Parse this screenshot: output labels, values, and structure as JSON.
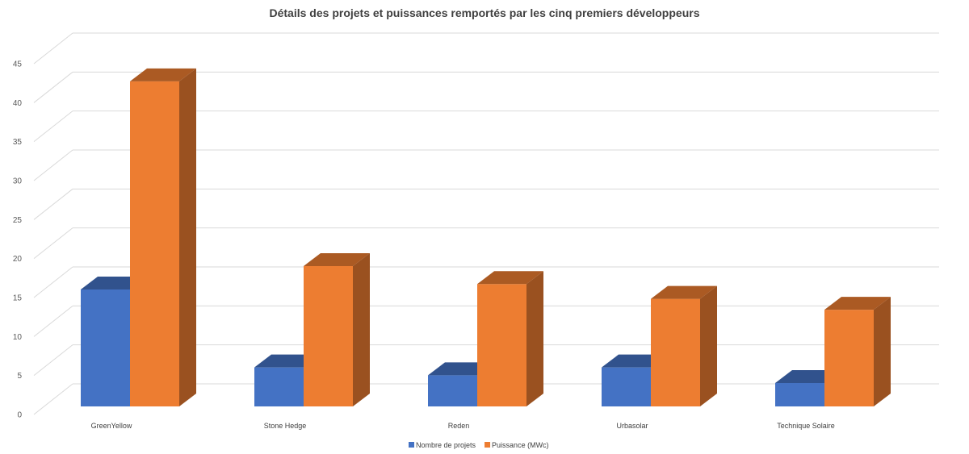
{
  "chart_data": {
    "type": "bar",
    "title": "Détails des projets et puissances remportés par les cinq premiers développeurs",
    "xlabel": "",
    "ylabel": "",
    "categories": [
      "GreenYellow",
      "Stone Hedge",
      "Reden",
      "Urbasolar",
      "Technique Solaire"
    ],
    "series": [
      {
        "name": "Nombre de projets",
        "color": "#4472C4",
        "values": [
          15,
          5,
          4,
          5,
          3
        ]
      },
      {
        "name": "Puissance (MWc)",
        "color": "#ED7D31",
        "values": [
          41.7,
          18,
          15.7,
          13.8,
          12.4
        ]
      }
    ],
    "ylim": [
      0,
      45
    ],
    "yticks": [
      "0",
      "5",
      "10",
      "15",
      "20",
      "25",
      "30",
      "35",
      "40",
      "45"
    ],
    "grid": true,
    "legend_position": "bottom",
    "style": "3d-clustered-column"
  }
}
